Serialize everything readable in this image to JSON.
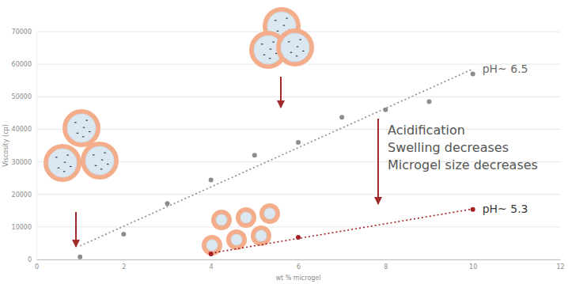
{
  "chart_data": {
    "type": "scatter",
    "x_label": "wt % microgel",
    "y_label": "Viscosity (cp)",
    "xlim": [
      0,
      12
    ],
    "xticks": [
      0,
      2,
      4,
      6,
      8,
      10,
      12
    ],
    "ylim": [
      0,
      70000
    ],
    "yticks": [
      0,
      10000,
      20000,
      30000,
      40000,
      50000,
      60000,
      70000
    ],
    "grid": true,
    "series": [
      {
        "name": "pH~ 6.5",
        "color": "#8c8c8c",
        "marker": "circle",
        "line_style": "dotted",
        "x": [
          1,
          2,
          3,
          4,
          5,
          6,
          7,
          8,
          9,
          10
        ],
        "values": [
          800,
          7800,
          17200,
          24400,
          32000,
          36000,
          43700,
          46000,
          48500,
          57000
        ]
      },
      {
        "name": "pH~ 5.3",
        "color": "#a31f24",
        "marker": "circle",
        "line_style": "dotted",
        "x": [
          4,
          6,
          10
        ],
        "values": [
          1700,
          6800,
          15400
        ]
      }
    ],
    "annotations": [
      "Acidification",
      "Swelling decreases",
      "Microgel size decreases"
    ]
  }
}
